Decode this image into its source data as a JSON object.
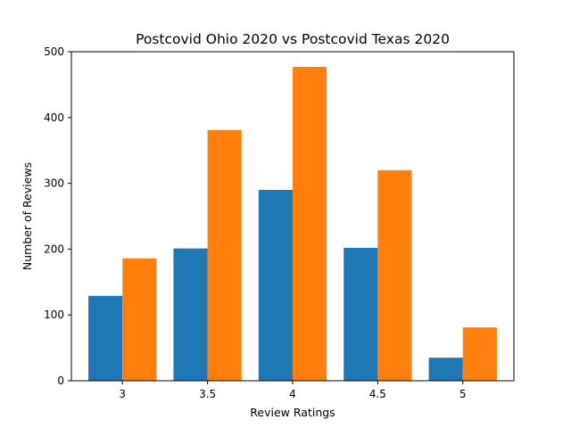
{
  "chart_data": {
    "type": "bar",
    "title": "Postcovid Ohio 2020 vs Postcovid Texas 2020",
    "xlabel": "Review Ratings",
    "ylabel": "Number of Reviews",
    "categories": [
      "3",
      "3.5",
      "4",
      "4.5",
      "5"
    ],
    "ylim": [
      0,
      500
    ],
    "yticks": [
      "0",
      "100",
      "200",
      "300",
      "400",
      "500"
    ],
    "grid": false,
    "legend": "none",
    "series": [
      {
        "values": [
          129,
          201,
          290,
          202,
          35
        ],
        "color": "#1f77b4"
      },
      {
        "values": [
          186,
          381,
          477,
          320,
          81
        ],
        "color": "#ff7f0e"
      }
    ]
  }
}
